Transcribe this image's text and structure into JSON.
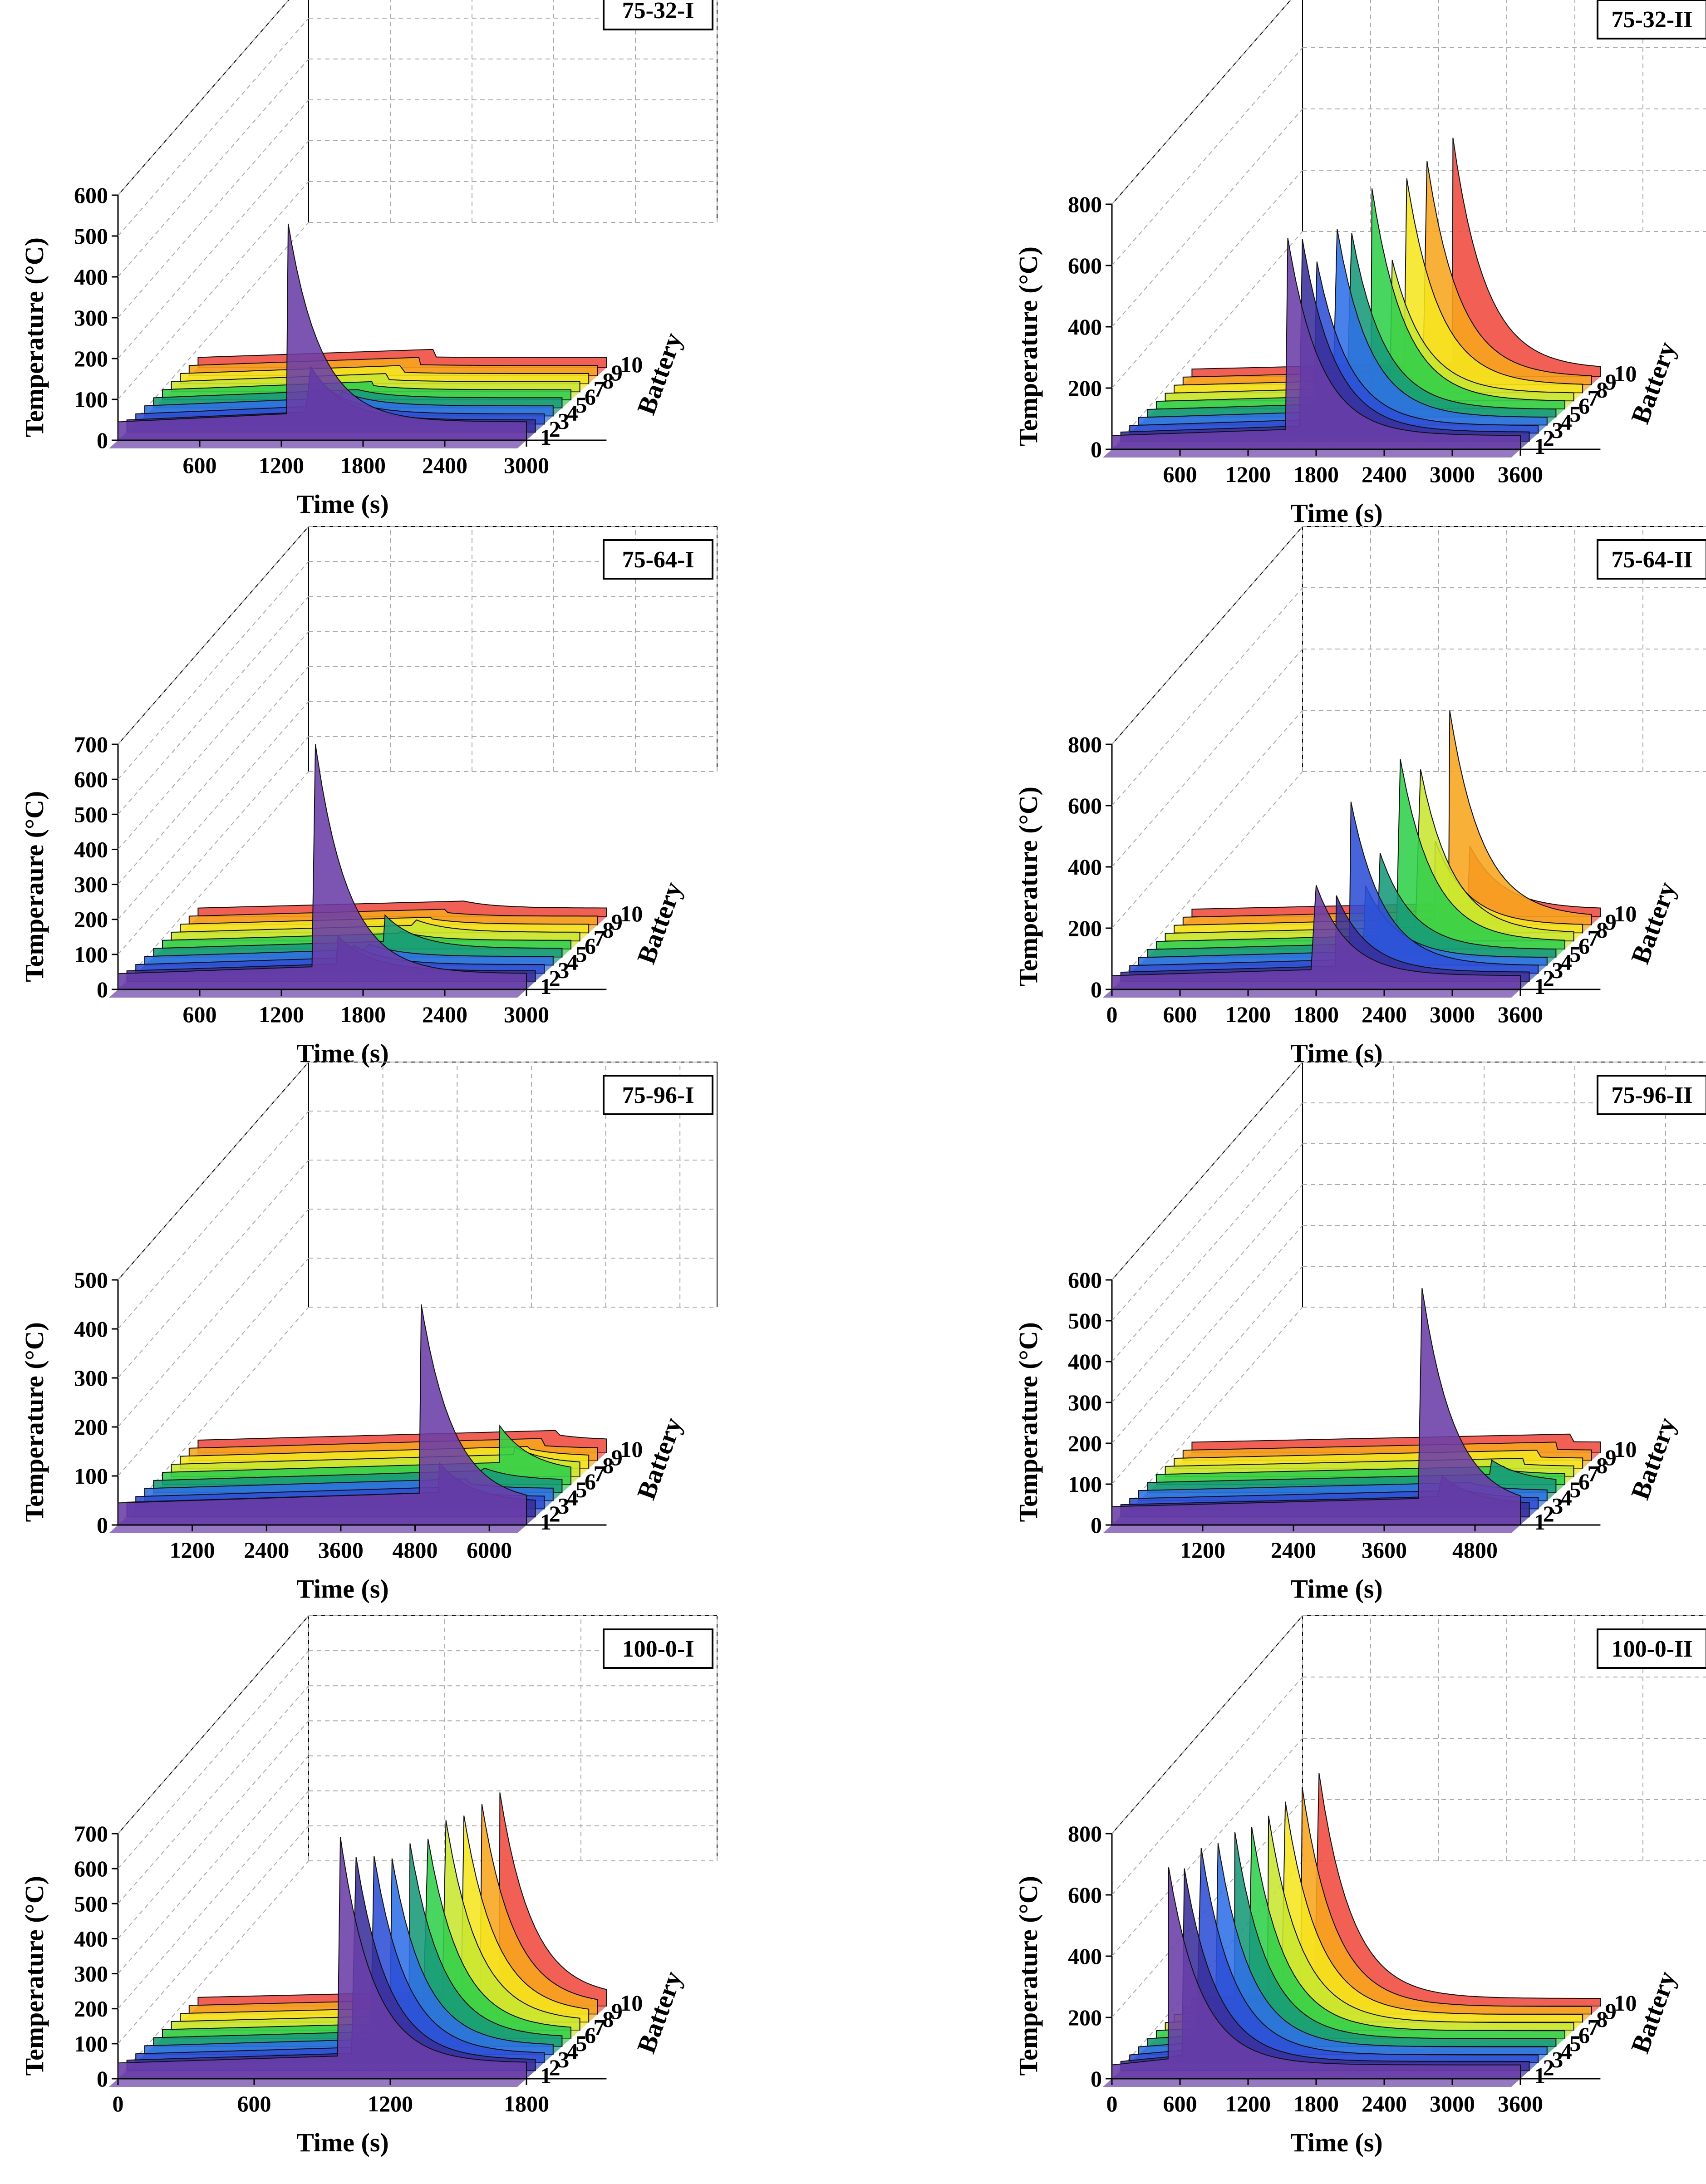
{
  "figure": {
    "palette": [
      "#6a3ea8",
      "#3a2f9c",
      "#2e4fd6",
      "#2f6fe6",
      "#179a7a",
      "#2fcf4a",
      "#c8e630",
      "#f5e61e",
      "#f7a51e",
      "#f04a3e"
    ]
  },
  "panels": [
    {
      "title": "75-32-I",
      "chart_data": {
        "type": "area",
        "title": "75-32-I",
        "xlabel": "Time (s)",
        "ylabel": "Temperature (°C)",
        "zlabel": "Battery",
        "xticks": [
          600,
          1200,
          1800,
          2400,
          3000
        ],
        "yticks": [
          0,
          100,
          200,
          300,
          400,
          500,
          600
        ],
        "zticks": [
          1,
          2,
          3,
          4,
          5,
          6,
          7,
          8,
          9,
          10
        ],
        "xlim": [
          0,
          3000
        ],
        "ylim": [
          0,
          600
        ],
        "series": [
          {
            "name": "1",
            "peak_time": 1250,
            "peak_temp": 530,
            "base_temp": 45
          },
          {
            "name": "2",
            "peak_time": 1350,
            "peak_temp": 160,
            "base_temp": 30
          },
          {
            "name": "3",
            "peak_time": 1400,
            "peak_temp": 90,
            "base_temp": 25
          },
          {
            "name": "4",
            "peak_time": 1450,
            "peak_temp": 60,
            "base_temp": 25
          },
          {
            "name": "5",
            "peak_time": 1500,
            "peak_temp": 45,
            "base_temp": 25
          },
          {
            "name": "6",
            "peak_time": 1550,
            "peak_temp": 35,
            "base_temp": 25
          },
          {
            "name": "7",
            "peak_time": 1600,
            "peak_temp": 30,
            "base_temp": 25
          },
          {
            "name": "8",
            "peak_time": 1650,
            "peak_temp": 28,
            "base_temp": 25
          },
          {
            "name": "9",
            "peak_time": 1700,
            "peak_temp": 27,
            "base_temp": 25
          },
          {
            "name": "10",
            "peak_time": 1750,
            "peak_temp": 26,
            "base_temp": 25
          }
        ]
      }
    },
    {
      "title": "75-32-II",
      "chart_data": {
        "type": "area",
        "title": "75-32-II",
        "xlabel": "Time (s)",
        "ylabel": "Temperature (°C)",
        "zlabel": "Battery",
        "xticks": [
          600,
          1200,
          1800,
          2400,
          3000,
          3600
        ],
        "yticks": [
          0,
          200,
          400,
          600,
          800
        ],
        "zticks": [
          1,
          2,
          3,
          4,
          5,
          6,
          7,
          8,
          9,
          10
        ],
        "xlim": [
          0,
          3600
        ],
        "ylim": [
          0,
          800
        ],
        "series": [
          {
            "name": "1",
            "peak_time": 1550,
            "peak_temp": 690,
            "base_temp": 45
          },
          {
            "name": "2",
            "peak_time": 1600,
            "peak_temp": 660,
            "base_temp": 30
          },
          {
            "name": "3",
            "peak_time": 1650,
            "peak_temp": 560,
            "base_temp": 25
          },
          {
            "name": "4",
            "peak_time": 1750,
            "peak_temp": 640,
            "base_temp": 25
          },
          {
            "name": "5",
            "peak_time": 1800,
            "peak_temp": 600,
            "base_temp": 25
          },
          {
            "name": "6",
            "peak_time": 1900,
            "peak_temp": 720,
            "base_temp": 25
          },
          {
            "name": "7",
            "peak_time": 2000,
            "peak_temp": 460,
            "base_temp": 25
          },
          {
            "name": "8",
            "peak_time": 2050,
            "peak_temp": 700,
            "base_temp": 25
          },
          {
            "name": "9",
            "peak_time": 2150,
            "peak_temp": 730,
            "base_temp": 25
          },
          {
            "name": "10",
            "peak_time": 2300,
            "peak_temp": 780,
            "base_temp": 25
          }
        ]
      }
    },
    {
      "title": "75-64-I",
      "chart_data": {
        "type": "area",
        "title": "75-64-I",
        "xlabel": "Time (s)",
        "ylabel": "Temperaure (°C)",
        "zlabel": "Battery",
        "xticks": [
          600,
          1200,
          1800,
          2400,
          3000
        ],
        "yticks": [
          0,
          100,
          200,
          300,
          400,
          500,
          600,
          700
        ],
        "zticks": [
          1,
          2,
          3,
          4,
          5,
          6,
          7,
          8,
          9,
          10
        ],
        "xlim": [
          0,
          3000
        ],
        "ylim": [
          0,
          700
        ],
        "series": [
          {
            "name": "1",
            "peak_time": 1450,
            "peak_temp": 700,
            "base_temp": 45
          },
          {
            "name": "2",
            "peak_time": 1550,
            "peak_temp": 130,
            "base_temp": 30
          },
          {
            "name": "3",
            "peak_time": 1600,
            "peak_temp": 80,
            "base_temp": 25
          },
          {
            "name": "4",
            "peak_time": 1650,
            "peak_temp": 60,
            "base_temp": 25
          },
          {
            "name": "5",
            "peak_time": 1700,
            "peak_temp": 120,
            "base_temp": 25
          },
          {
            "name": "6",
            "peak_time": 1750,
            "peak_temp": 50,
            "base_temp": 25
          },
          {
            "name": "7",
            "peak_time": 1800,
            "peak_temp": 60,
            "base_temp": 25
          },
          {
            "name": "8",
            "peak_time": 1850,
            "peak_temp": 40,
            "base_temp": 25
          },
          {
            "name": "9",
            "peak_time": 1900,
            "peak_temp": 35,
            "base_temp": 25
          },
          {
            "name": "10",
            "peak_time": 1950,
            "peak_temp": 45,
            "base_temp": 25
          }
        ]
      }
    },
    {
      "title": "75-64-II",
      "chart_data": {
        "type": "area",
        "title": "75-64-II",
        "xlabel": "Time (s)",
        "ylabel": "Temperature (°C)",
        "zlabel": "Battery",
        "xticks": [
          0,
          600,
          1200,
          1800,
          2400,
          3000,
          3600
        ],
        "yticks": [
          0,
          200,
          400,
          600,
          800
        ],
        "zticks": [
          1,
          2,
          3,
          4,
          5,
          6,
          7,
          8,
          9,
          10
        ],
        "xlim": [
          0,
          3600
        ],
        "ylim": [
          0,
          800
        ],
        "series": [
          {
            "name": "1",
            "peak_time": 1800,
            "peak_temp": 340,
            "base_temp": 45
          },
          {
            "name": "2",
            "peak_time": 1900,
            "peak_temp": 280,
            "base_temp": 30
          },
          {
            "name": "3",
            "peak_time": 1950,
            "peak_temp": 560,
            "base_temp": 25
          },
          {
            "name": "4",
            "peak_time": 2000,
            "peak_temp": 260,
            "base_temp": 25
          },
          {
            "name": "5",
            "peak_time": 2050,
            "peak_temp": 340,
            "base_temp": 25
          },
          {
            "name": "6",
            "peak_time": 2150,
            "peak_temp": 620,
            "base_temp": 25
          },
          {
            "name": "7",
            "peak_time": 2250,
            "peak_temp": 560,
            "base_temp": 25
          },
          {
            "name": "8",
            "peak_time": 2300,
            "peak_temp": 300,
            "base_temp": 25
          },
          {
            "name": "9",
            "peak_time": 2350,
            "peak_temp": 700,
            "base_temp": 25
          },
          {
            "name": "10",
            "peak_time": 2450,
            "peak_temp": 230,
            "base_temp": 25
          }
        ]
      }
    },
    {
      "title": "75-96-I",
      "chart_data": {
        "type": "area",
        "title": "75-96-I",
        "xlabel": "Time (s)",
        "ylabel": "Temperature (°C)",
        "zlabel": "Battery",
        "xticks": [
          1200,
          2400,
          3600,
          4800,
          6000
        ],
        "yticks": [
          0,
          100,
          200,
          300,
          400,
          500
        ],
        "zticks": [
          1,
          2,
          3,
          4,
          5,
          6,
          7,
          8,
          9,
          10
        ],
        "xlim": [
          0,
          6600
        ],
        "ylim": [
          0,
          500
        ],
        "series": [
          {
            "name": "1",
            "peak_time": 4900,
            "peak_temp": 450,
            "base_temp": 45
          },
          {
            "name": "2",
            "peak_time": 5050,
            "peak_temp": 110,
            "base_temp": 30
          },
          {
            "name": "3",
            "peak_time": 5150,
            "peak_temp": 40,
            "base_temp": 25
          },
          {
            "name": "4",
            "peak_time": 5250,
            "peak_temp": 35,
            "base_temp": 25
          },
          {
            "name": "5",
            "peak_time": 5350,
            "peak_temp": 50,
            "base_temp": 25
          },
          {
            "name": "6",
            "peak_time": 5450,
            "peak_temp": 120,
            "base_temp": 25
          },
          {
            "name": "7",
            "peak_time": 5550,
            "peak_temp": 60,
            "base_temp": 25
          },
          {
            "name": "8",
            "peak_time": 5650,
            "peak_temp": 40,
            "base_temp": 25
          },
          {
            "name": "9",
            "peak_time": 5750,
            "peak_temp": 30,
            "base_temp": 25
          },
          {
            "name": "10",
            "peak_time": 5850,
            "peak_temp": 35,
            "base_temp": 25
          }
        ]
      }
    },
    {
      "title": "75-96-II",
      "chart_data": {
        "type": "area",
        "title": "75-96-II",
        "xlabel": "Time (s)",
        "ylabel": "Temperature (°C)",
        "zlabel": "Battery",
        "xticks": [
          1200,
          2400,
          3600,
          4800
        ],
        "yticks": [
          0,
          100,
          200,
          300,
          400,
          500,
          600
        ],
        "zticks": [
          1,
          2,
          3,
          4,
          5,
          6,
          7,
          8,
          9,
          10
        ],
        "xlim": [
          0,
          5400
        ],
        "ylim": [
          0,
          600
        ],
        "series": [
          {
            "name": "1",
            "peak_time": 4100,
            "peak_temp": 580,
            "base_temp": 45
          },
          {
            "name": "2",
            "peak_time": 4250,
            "peak_temp": 100,
            "base_temp": 30
          },
          {
            "name": "3",
            "peak_time": 4350,
            "peak_temp": 50,
            "base_temp": 25
          },
          {
            "name": "4",
            "peak_time": 4450,
            "peak_temp": 40,
            "base_temp": 25
          },
          {
            "name": "5",
            "peak_time": 4550,
            "peak_temp": 80,
            "base_temp": 25
          },
          {
            "name": "6",
            "peak_time": 4650,
            "peak_temp": 35,
            "base_temp": 25
          },
          {
            "name": "7",
            "peak_time": 4750,
            "peak_temp": 30,
            "base_temp": 25
          },
          {
            "name": "8",
            "peak_time": 4850,
            "peak_temp": 28,
            "base_temp": 25
          },
          {
            "name": "9",
            "peak_time": 4950,
            "peak_temp": 27,
            "base_temp": 25
          },
          {
            "name": "10",
            "peak_time": 5050,
            "peak_temp": 26,
            "base_temp": 25
          }
        ]
      }
    },
    {
      "title": "100-0-I",
      "chart_data": {
        "type": "area",
        "title": "100-0-I",
        "xlabel": "Time (s)",
        "ylabel": "Temperature (°C)",
        "zlabel": "Battery",
        "xticks": [
          0,
          600,
          1200,
          1800
        ],
        "yticks": [
          0,
          100,
          200,
          300,
          400,
          500,
          600,
          700
        ],
        "zticks": [
          1,
          2,
          3,
          4,
          5,
          6,
          7,
          8,
          9,
          10
        ],
        "xlim": [
          0,
          1800
        ],
        "ylim": [
          0,
          700
        ],
        "series": [
          {
            "name": "1",
            "peak_time": 980,
            "peak_temp": 690,
            "base_temp": 45
          },
          {
            "name": "2",
            "peak_time": 1010,
            "peak_temp": 610,
            "base_temp": 30
          },
          {
            "name": "3",
            "peak_time": 1050,
            "peak_temp": 590,
            "base_temp": 25
          },
          {
            "name": "4",
            "peak_time": 1090,
            "peak_temp": 560,
            "base_temp": 25
          },
          {
            "name": "5",
            "peak_time": 1130,
            "peak_temp": 580,
            "base_temp": 25
          },
          {
            "name": "6",
            "peak_time": 1170,
            "peak_temp": 570,
            "base_temp": 25
          },
          {
            "name": "7",
            "peak_time": 1210,
            "peak_temp": 600,
            "base_temp": 25
          },
          {
            "name": "8",
            "peak_time": 1250,
            "peak_temp": 590,
            "base_temp": 25
          },
          {
            "name": "9",
            "peak_time": 1290,
            "peak_temp": 600,
            "base_temp": 25
          },
          {
            "name": "10",
            "peak_time": 1330,
            "peak_temp": 610,
            "base_temp": 25
          }
        ]
      }
    },
    {
      "title": "100-0-II",
      "chart_data": {
        "type": "area",
        "title": "100-0-II",
        "xlabel": "Time (s)",
        "ylabel": "Temperature (°C)",
        "zlabel": "Battery",
        "xticks": [
          0,
          600,
          1200,
          1800,
          2400,
          3000,
          3600
        ],
        "yticks": [
          0,
          200,
          400,
          600,
          800
        ],
        "zticks": [
          1,
          2,
          3,
          4,
          5,
          6,
          7,
          8,
          9,
          10
        ],
        "xlim": [
          0,
          3600
        ],
        "ylim": [
          0,
          800
        ],
        "series": [
          {
            "name": "1",
            "peak_time": 500,
            "peak_temp": 690,
            "base_temp": 45
          },
          {
            "name": "2",
            "peak_time": 560,
            "peak_temp": 660,
            "base_temp": 30
          },
          {
            "name": "3",
            "peak_time": 630,
            "peak_temp": 700,
            "base_temp": 25
          },
          {
            "name": "4",
            "peak_time": 700,
            "peak_temp": 690,
            "base_temp": 25
          },
          {
            "name": "5",
            "peak_time": 770,
            "peak_temp": 700,
            "base_temp": 25
          },
          {
            "name": "6",
            "peak_time": 840,
            "peak_temp": 690,
            "base_temp": 25
          },
          {
            "name": "7",
            "peak_time": 910,
            "peak_temp": 700,
            "base_temp": 25
          },
          {
            "name": "8",
            "peak_time": 980,
            "peak_temp": 720,
            "base_temp": 25
          },
          {
            "name": "9",
            "peak_time": 1050,
            "peak_temp": 740,
            "base_temp": 25
          },
          {
            "name": "10",
            "peak_time": 1120,
            "peak_temp": 760,
            "base_temp": 25
          }
        ]
      }
    }
  ]
}
